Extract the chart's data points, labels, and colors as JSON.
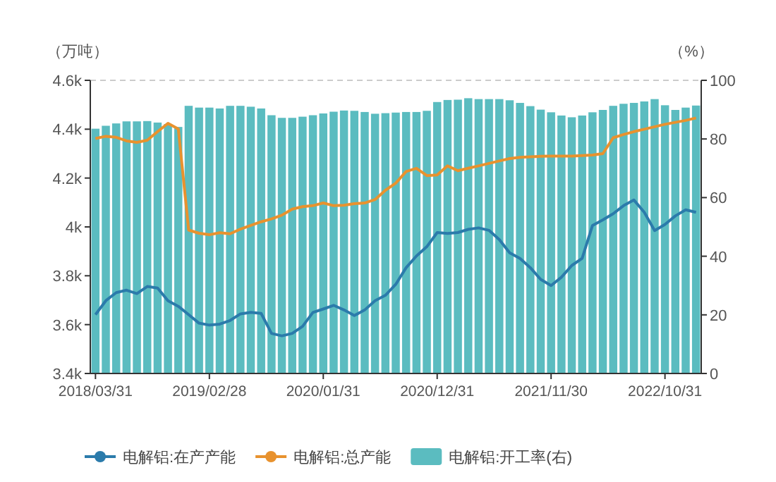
{
  "chart_data": {
    "type": "line",
    "ylabel": "（万吨）",
    "y2label": "（%）",
    "categories": [
      "2018/03/31",
      null,
      null,
      null,
      null,
      null,
      null,
      null,
      null,
      null,
      null,
      "2019/02/28",
      null,
      null,
      null,
      null,
      null,
      null,
      null,
      null,
      null,
      null,
      "2020/01/31",
      null,
      null,
      null,
      null,
      null,
      null,
      null,
      null,
      null,
      null,
      "2020/12/31",
      null,
      null,
      null,
      null,
      null,
      null,
      null,
      null,
      null,
      null,
      "2021/11/30",
      null,
      null,
      null,
      null,
      null,
      null,
      null,
      null,
      null,
      null,
      "2022/10/31",
      null,
      null,
      null
    ],
    "ylim": [
      3400,
      4600
    ],
    "yticks": [
      {
        "value": 3400,
        "label": "3.4k"
      },
      {
        "value": 3600,
        "label": "3.6k"
      },
      {
        "value": 3800,
        "label": "3.8k"
      },
      {
        "value": 4000,
        "label": "4k"
      },
      {
        "value": 4200,
        "label": "4.2k"
      },
      {
        "value": 4400,
        "label": "4.4k"
      },
      {
        "value": 4600,
        "label": "4.6k"
      }
    ],
    "y2lim": [
      0,
      100
    ],
    "y2ticks": [
      0,
      20,
      40,
      60,
      80,
      100
    ],
    "ref_lines": [
      {
        "axis": "y",
        "value": 4600,
        "label": null,
        "color": "#cccccc",
        "line_style": "dashed"
      }
    ],
    "legend": "bottom",
    "series": [
      {
        "name": "电解铝:开工率(右)",
        "type": "bar",
        "axis": "y2",
        "color": "#5bbcc0",
        "values": [
          83.5,
          84.5,
          85.3,
          86,
          86,
          86.1,
          85.6,
          85.1,
          84.1,
          91.3,
          90.7,
          90.7,
          90.4,
          91.3,
          91.3,
          91,
          90.4,
          88.1,
          87.2,
          87.2,
          87.6,
          88.1,
          88.7,
          89.3,
          89.7,
          89.6,
          89.2,
          88.6,
          88.8,
          89,
          89.2,
          89.2,
          89.6,
          92.6,
          93.3,
          93.4,
          93.9,
          93.6,
          93.6,
          93.6,
          93.2,
          92.3,
          91.2,
          90,
          89.1,
          88,
          87.4,
          88,
          89.1,
          89.9,
          91.3,
          92,
          92.3,
          92.8,
          93.6,
          91.5,
          89.9,
          90.7,
          91.4
        ]
      },
      {
        "name": "电解铝:在产产能",
        "color": "#2b7bab",
        "values": [
          3641,
          3698,
          3731,
          3741,
          3727,
          3756,
          3750,
          3698,
          3675,
          3641,
          3606,
          3598,
          3602,
          3617,
          3644,
          3650,
          3646,
          3564,
          3554,
          3564,
          3593,
          3650,
          3664,
          3679,
          3660,
          3637,
          3660,
          3698,
          3720,
          3765,
          3833,
          3881,
          3919,
          3977,
          3973,
          3977,
          3990,
          3996,
          3986,
          3948,
          3894,
          3871,
          3833,
          3785,
          3760,
          3794,
          3842,
          3871,
          4006,
          4029,
          4054,
          4087,
          4110,
          4060,
          3985,
          4010,
          4045,
          4070,
          4060
        ]
      },
      {
        "name": "电解铝:总产能",
        "color": "#e8922e",
        "values": [
          4362,
          4371,
          4367,
          4352,
          4346,
          4355,
          4390,
          4424,
          4401,
          3987,
          3974,
          3968,
          3976,
          3972,
          3991,
          4006,
          4021,
          4033,
          4048,
          4073,
          4083,
          4087,
          4098,
          4087,
          4089,
          4095,
          4098,
          4112,
          4150,
          4179,
          4227,
          4240,
          4210,
          4213,
          4250,
          4230,
          4240,
          4250,
          4260,
          4270,
          4280,
          4285,
          4287,
          4289,
          4290,
          4290,
          4290,
          4292,
          4294,
          4300,
          4365,
          4378,
          4390,
          4400,
          4410,
          4420,
          4428,
          4436,
          4446
        ]
      }
    ]
  }
}
